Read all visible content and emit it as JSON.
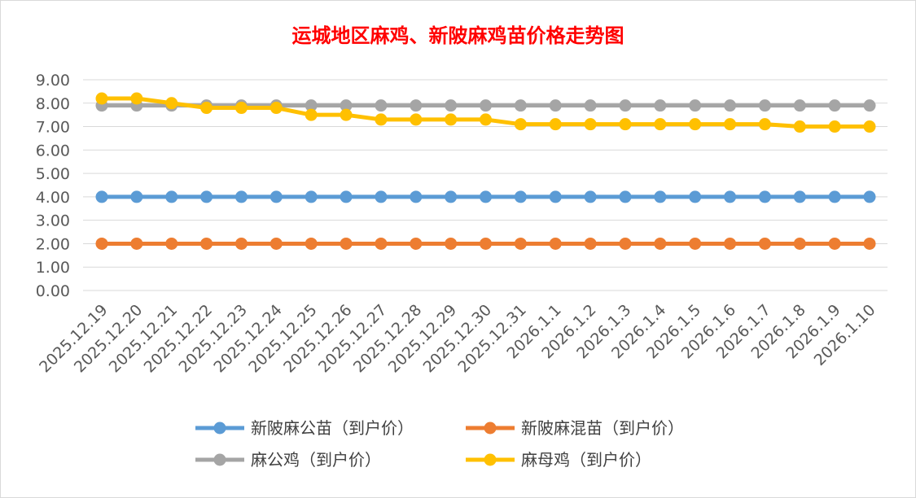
{
  "chart_data": {
    "type": "line",
    "title": "运城地区麻鸡、新陂麻鸡苗价格走势图",
    "xlabel": "",
    "ylabel": "",
    "ylim": [
      0,
      9
    ],
    "yticks": [
      "0.00",
      "1.00",
      "2.00",
      "3.00",
      "4.00",
      "5.00",
      "6.00",
      "7.00",
      "8.00",
      "9.00"
    ],
    "grid": true,
    "legend_position": "bottom",
    "categories": [
      "2025.12.19",
      "2025.12.20",
      "2025.12.21",
      "2025.12.22",
      "2025.12.23",
      "2025.12.24",
      "2025.12.25",
      "2025.12.26",
      "2025.12.27",
      "2025.12.28",
      "2025.12.29",
      "2025.12.30",
      "2025.12.31",
      "2026.1.1",
      "2026.1.2",
      "2026.1.3",
      "2026.1.4",
      "2026.1.5",
      "2026.1.6",
      "2026.1.7",
      "2026.1.8",
      "2026.1.9",
      "2026.1.10"
    ],
    "series": [
      {
        "name": "新陂麻公苗（到户价）",
        "color": "#5b9bd5",
        "values": [
          4,
          4,
          4,
          4,
          4,
          4,
          4,
          4,
          4,
          4,
          4,
          4,
          4,
          4,
          4,
          4,
          4,
          4,
          4,
          4,
          4,
          4,
          4
        ]
      },
      {
        "name": "新陂麻混苗（到户价）",
        "color": "#ed7d31",
        "values": [
          2,
          2,
          2,
          2,
          2,
          2,
          2,
          2,
          2,
          2,
          2,
          2,
          2,
          2,
          2,
          2,
          2,
          2,
          2,
          2,
          2,
          2,
          2
        ]
      },
      {
        "name": "麻公鸡（到户价）",
        "color": "#a5a5a5",
        "values": [
          7.9,
          7.9,
          7.9,
          7.9,
          7.9,
          7.9,
          7.9,
          7.9,
          7.9,
          7.9,
          7.9,
          7.9,
          7.9,
          7.9,
          7.9,
          7.9,
          7.9,
          7.9,
          7.9,
          7.9,
          7.9,
          7.9,
          7.9
        ]
      },
      {
        "name": "麻母鸡（到户价）",
        "color": "#ffc000",
        "values": [
          8.2,
          8.2,
          8.0,
          7.8,
          7.8,
          7.8,
          7.5,
          7.5,
          7.3,
          7.3,
          7.3,
          7.3,
          7.1,
          7.1,
          7.1,
          7.1,
          7.1,
          7.1,
          7.1,
          7.1,
          7.0,
          7.0,
          7.0
        ]
      }
    ]
  }
}
